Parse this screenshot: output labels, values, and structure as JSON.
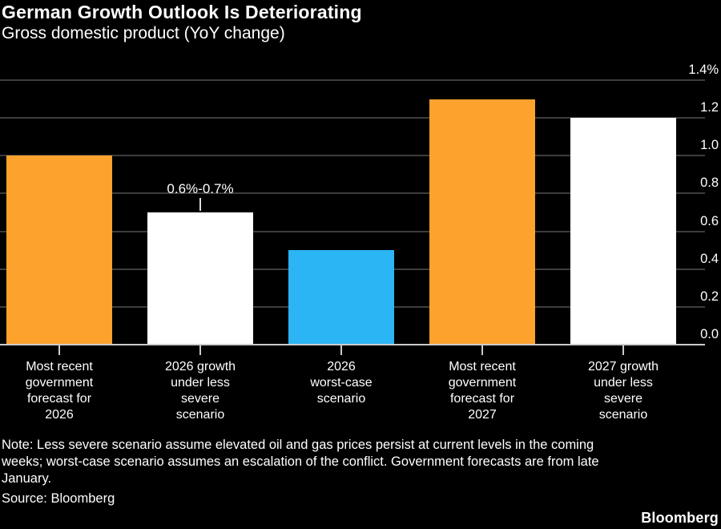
{
  "chart_data": {
    "type": "bar",
    "title": "German Growth Outlook Is Deteriorating",
    "subtitle": "Gross domestic product (YoY change)",
    "xlabel": "",
    "ylabel": "",
    "categories": [
      "Most recent government forecast for 2026",
      "2026 growth under less severe scenario",
      "2026 worst-case scenario",
      "Most recent government forecast for 2027",
      "2027 growth under less severe scenario"
    ],
    "category_label_lines": [
      [
        "Most recent",
        "government",
        "forecast for",
        "2026"
      ],
      [
        "2026 growth",
        "under less",
        "severe",
        "scenario"
      ],
      [
        "2026",
        "worst-case",
        "scenario"
      ],
      [
        "Most recent",
        "government",
        "forecast for",
        "2027"
      ],
      [
        "2027 growth",
        "under less",
        "severe",
        "scenario"
      ]
    ],
    "values": [
      1.0,
      0.7,
      0.5,
      1.3,
      1.2
    ],
    "bar_colors": [
      "#FCA22D",
      "#FFFFFF",
      "#2CB5F4",
      "#FCA22D",
      "#FFFFFF"
    ],
    "annotation": {
      "bar_index": 1,
      "text": "0.6%-0.7%"
    },
    "y_axis": {
      "side": "right",
      "unit": "%",
      "range": [
        0.0,
        1.4
      ],
      "tick_values": [
        1.4,
        1.2,
        1.0,
        0.8,
        0.6,
        0.4,
        0.2,
        0.0
      ],
      "tick_labels": [
        "1.4%",
        "1.2",
        "1.0",
        "0.8",
        "0.6",
        "0.4",
        "0.2",
        "0.0"
      ]
    },
    "grid": true,
    "note_lines": [
      "Note: Less severe scenario assume elevated oil and gas prices persist at current levels in the coming",
      "weeks; worst-case scenario assumes an escalation of the conflict. Government forecasts are from late",
      "January."
    ],
    "source": "Source: Bloomberg"
  },
  "branding": {
    "logo_text": "Bloomberg"
  },
  "colors": {
    "background": "#000000",
    "text": "#FFFFFF",
    "orange_bar": "#FCA22D",
    "blue_bar": "#2CB5F4",
    "white_bar": "#FFFFFF",
    "gridline": "#3D3D3D",
    "axis": "#CBCBCB"
  }
}
